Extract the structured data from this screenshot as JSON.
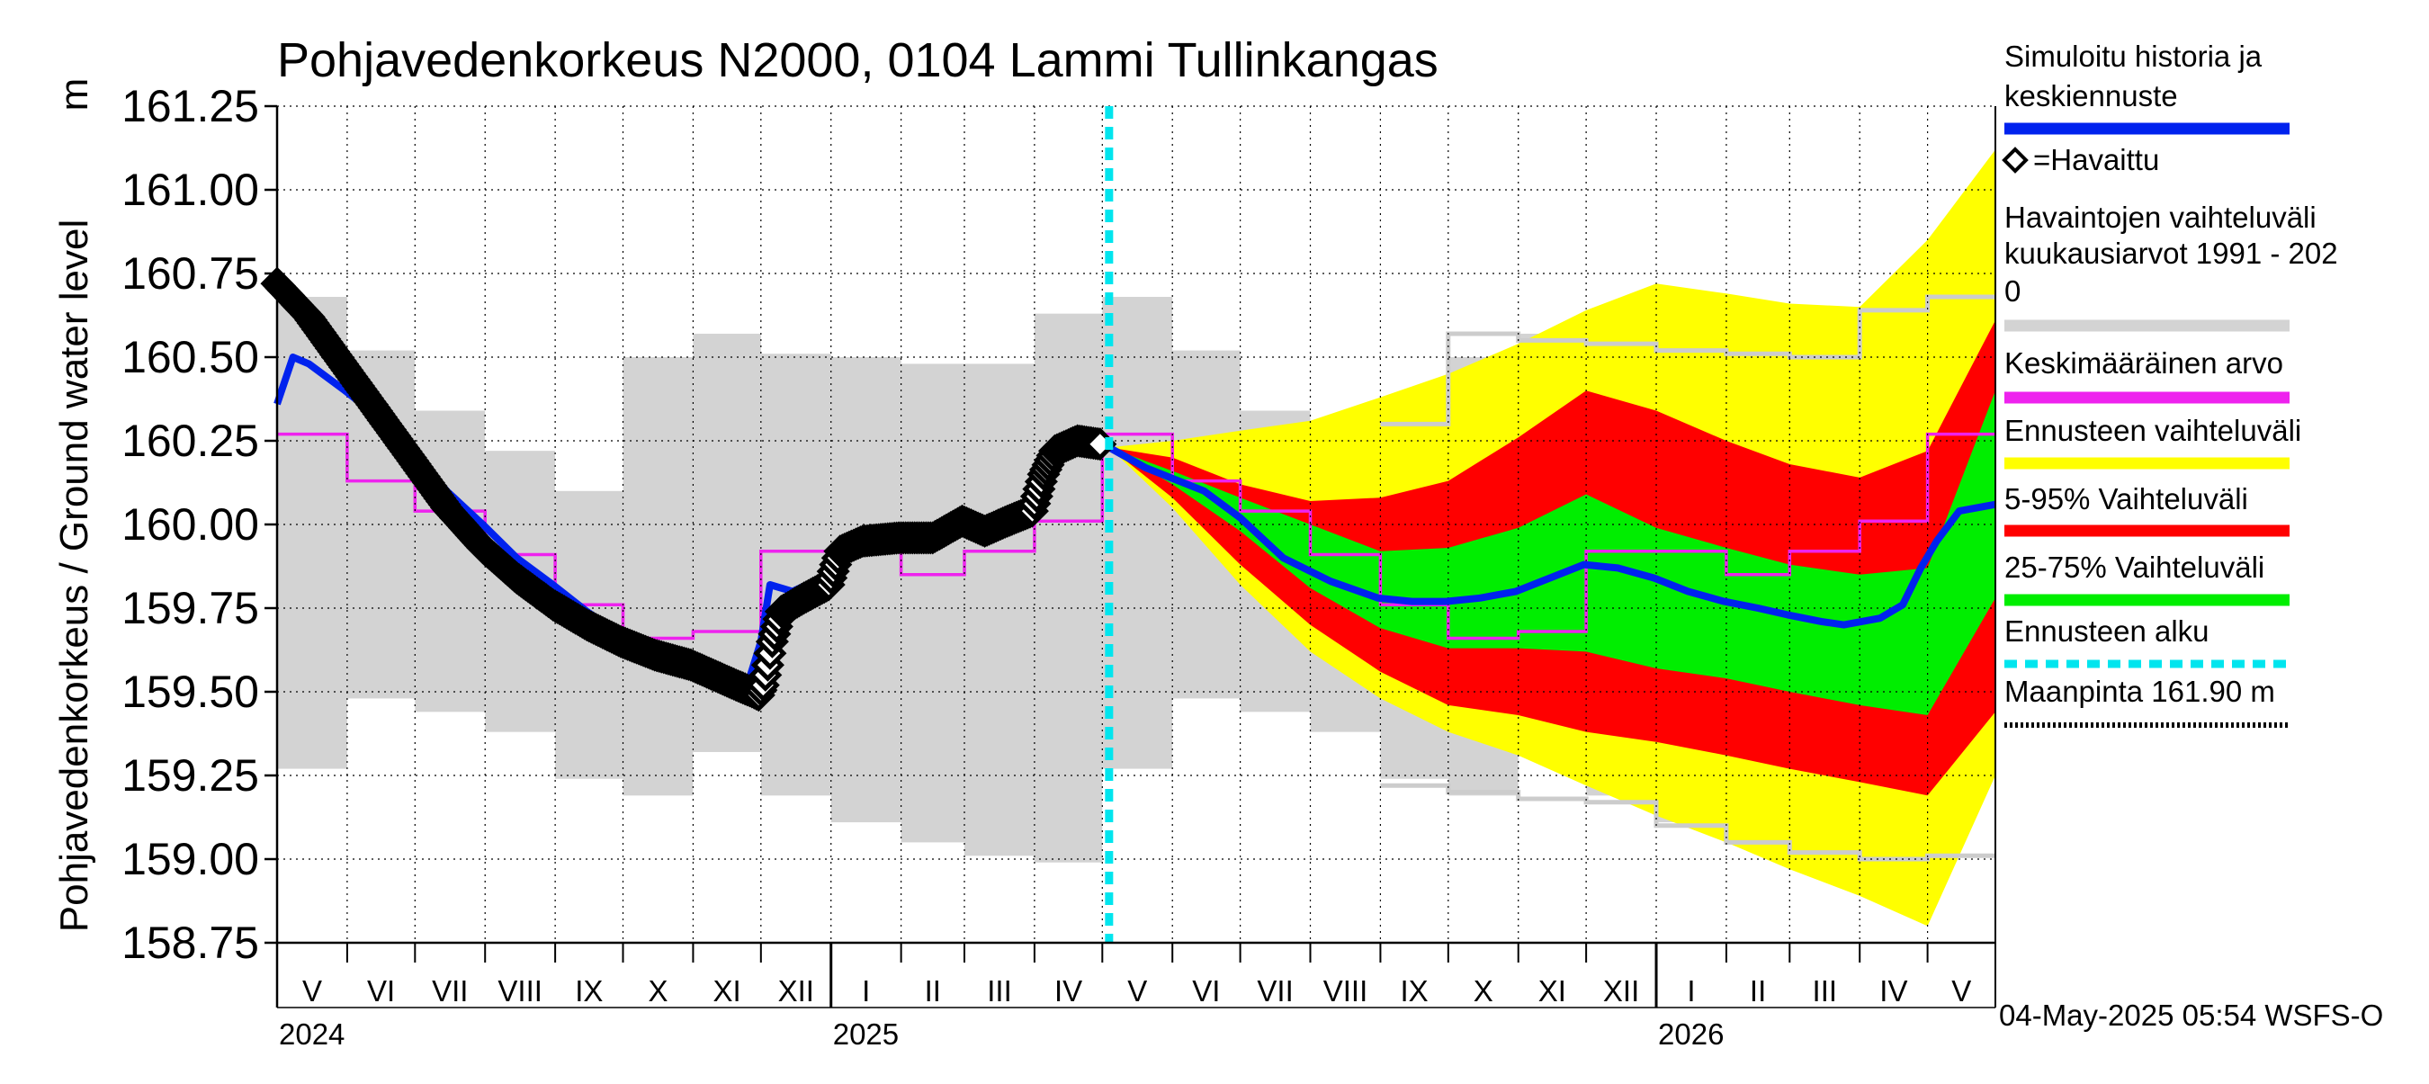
{
  "chart_data": {
    "type": "line",
    "title": "Pohjavedenkorkeus N2000, 0104 Lammi Tullinkangas",
    "ylabel": "Pohjavedenkorkeus / Ground water level",
    "yunit": "m",
    "ylim": [
      158.75,
      161.25
    ],
    "yticks": [
      "161.25",
      "161.00",
      "160.75",
      "160.50",
      "160.25",
      "160.00",
      "159.75",
      "159.50",
      "159.25",
      "159.00",
      "158.75"
    ],
    "xlim": [
      "2024-05-01",
      "2026-05-31"
    ],
    "grid": true,
    "months": [
      {
        "label": "V",
        "start": "2024-05-01"
      },
      {
        "label": "VI",
        "start": "2024-06-01"
      },
      {
        "label": "VII",
        "start": "2024-07-01"
      },
      {
        "label": "VIII",
        "start": "2024-08-01"
      },
      {
        "label": "IX",
        "start": "2024-09-01"
      },
      {
        "label": "X",
        "start": "2024-10-01"
      },
      {
        "label": "XI",
        "start": "2024-11-01"
      },
      {
        "label": "XII",
        "start": "2024-12-01"
      },
      {
        "label": "I",
        "start": "2025-01-01"
      },
      {
        "label": "II",
        "start": "2025-02-01"
      },
      {
        "label": "III",
        "start": "2025-03-01"
      },
      {
        "label": "IV",
        "start": "2025-04-01"
      },
      {
        "label": "V",
        "start": "2025-05-01"
      },
      {
        "label": "VI",
        "start": "2025-06-01"
      },
      {
        "label": "VII",
        "start": "2025-07-01"
      },
      {
        "label": "VIII",
        "start": "2025-08-01"
      },
      {
        "label": "IX",
        "start": "2025-09-01"
      },
      {
        "label": "X",
        "start": "2025-10-01"
      },
      {
        "label": "XI",
        "start": "2025-11-01"
      },
      {
        "label": "XII",
        "start": "2025-12-01"
      },
      {
        "label": "I",
        "start": "2026-01-01"
      },
      {
        "label": "II",
        "start": "2026-02-01"
      },
      {
        "label": "III",
        "start": "2026-03-01"
      },
      {
        "label": "IV",
        "start": "2026-04-01"
      },
      {
        "label": "V",
        "start": "2026-05-01"
      }
    ],
    "month_end": "2026-06-01",
    "years": [
      {
        "label": "2024",
        "date": "2024-05-01"
      },
      {
        "label": "2025",
        "date": "2025-01-01"
      },
      {
        "label": "2026",
        "date": "2026-01-01"
      }
    ],
    "forecast_start": "2025-05-04",
    "historical_range_monthly": [
      {
        "month": "2024-05",
        "min": 159.27,
        "max": 160.68
      },
      {
        "month": "2024-06",
        "min": 159.48,
        "max": 160.52
      },
      {
        "month": "2024-07",
        "min": 159.44,
        "max": 160.34
      },
      {
        "month": "2024-08",
        "min": 159.38,
        "max": 160.22
      },
      {
        "month": "2024-09",
        "min": 159.24,
        "max": 160.1
      },
      {
        "month": "2024-10",
        "min": 159.19,
        "max": 160.5
      },
      {
        "month": "2024-11",
        "min": 159.32,
        "max": 160.57
      },
      {
        "month": "2024-12",
        "min": 159.19,
        "max": 160.51
      },
      {
        "month": "2025-01",
        "min": 159.11,
        "max": 160.5
      },
      {
        "month": "2025-02",
        "min": 159.05,
        "max": 160.48
      },
      {
        "month": "2025-03",
        "min": 159.01,
        "max": 160.48
      },
      {
        "month": "2025-04",
        "min": 158.99,
        "max": 160.63
      },
      {
        "month": "2025-05",
        "min": 159.27,
        "max": 160.68
      },
      {
        "month": "2025-06",
        "min": 159.48,
        "max": 160.52
      },
      {
        "month": "2025-07",
        "min": 159.44,
        "max": 160.34
      },
      {
        "month": "2025-08",
        "min": 159.38,
        "max": 160.22
      },
      {
        "month": "2025-09",
        "min": 159.24,
        "max": 160.3
      },
      {
        "month": "2025-10",
        "min": 159.19,
        "max": 160.5
      },
      {
        "month": "2025-11",
        "min": 159.32,
        "max": 160.57
      },
      {
        "month": "2025-12",
        "min": 159.19,
        "max": 160.51
      },
      {
        "month": "2026-01",
        "min": 159.11,
        "max": 160.5
      },
      {
        "month": "2026-02",
        "min": 159.05,
        "max": 160.48
      },
      {
        "month": "2026-03",
        "min": 159.01,
        "max": 160.48
      },
      {
        "month": "2026-04",
        "min": 158.99,
        "max": 160.63
      },
      {
        "month": "2026-05",
        "min": 159.27,
        "max": 160.68
      }
    ],
    "monthly_mean": [
      {
        "month": "2024-05",
        "value": 160.27
      },
      {
        "month": "2024-06",
        "value": 160.13
      },
      {
        "month": "2024-07",
        "value": 160.04
      },
      {
        "month": "2024-08",
        "value": 159.91
      },
      {
        "month": "2024-09",
        "value": 159.76
      },
      {
        "month": "2024-10",
        "value": 159.66
      },
      {
        "month": "2024-11",
        "value": 159.68
      },
      {
        "month": "2024-12",
        "value": 159.92
      },
      {
        "month": "2025-01",
        "value": 159.92
      },
      {
        "month": "2025-02",
        "value": 159.85
      },
      {
        "month": "2025-03",
        "value": 159.92
      },
      {
        "month": "2025-04",
        "value": 160.01
      },
      {
        "month": "2025-05",
        "value": 160.27
      },
      {
        "month": "2025-06",
        "value": 160.13
      },
      {
        "month": "2025-07",
        "value": 160.04
      },
      {
        "month": "2025-08",
        "value": 159.91
      },
      {
        "month": "2025-09",
        "value": 159.76
      },
      {
        "month": "2025-10",
        "value": 159.66
      },
      {
        "month": "2025-11",
        "value": 159.68
      },
      {
        "month": "2025-12",
        "value": 159.92
      },
      {
        "month": "2026-01",
        "value": 159.92
      },
      {
        "month": "2026-02",
        "value": 159.85
      },
      {
        "month": "2026-03",
        "value": 159.92
      },
      {
        "month": "2026-04",
        "value": 160.01
      },
      {
        "month": "2026-05",
        "value": 160.27
      }
    ],
    "historical_monthly_extremes": [
      {
        "month": "2025-09",
        "min": 159.22,
        "max": 160.3
      },
      {
        "month": "2025-10",
        "min": 159.2,
        "max": 160.57
      },
      {
        "month": "2025-11",
        "min": 159.18,
        "max": 160.55
      },
      {
        "month": "2025-12",
        "min": 159.17,
        "max": 160.54
      },
      {
        "month": "2026-01",
        "min": 159.1,
        "max": 160.52
      },
      {
        "month": "2026-02",
        "min": 159.05,
        "max": 160.51
      },
      {
        "month": "2026-03",
        "min": 159.02,
        "max": 160.5
      },
      {
        "month": "2026-04",
        "min": 159.0,
        "max": 160.64
      },
      {
        "month": "2026-05",
        "min": 159.01,
        "max": 160.68
      }
    ],
    "series": [
      {
        "name": "Simuloitu historia ja keskiennuste",
        "color": "#0022ee",
        "points": [
          [
            "2024-05-01",
            160.36
          ],
          [
            "2024-05-08",
            160.5
          ],
          [
            "2024-05-15",
            160.48
          ],
          [
            "2024-05-31",
            160.4
          ],
          [
            "2024-06-15",
            160.32
          ],
          [
            "2024-06-30",
            160.22
          ],
          [
            "2024-07-15",
            160.1
          ],
          [
            "2024-07-31",
            160.0
          ],
          [
            "2024-08-15",
            159.9
          ],
          [
            "2024-08-31",
            159.82
          ],
          [
            "2024-09-15",
            159.74
          ],
          [
            "2024-09-30",
            159.67
          ],
          [
            "2024-10-15",
            159.62
          ],
          [
            "2024-10-31",
            159.58
          ],
          [
            "2024-11-10",
            159.54
          ],
          [
            "2024-11-20",
            159.5
          ],
          [
            "2024-11-25",
            159.52
          ],
          [
            "2024-12-01",
            159.65
          ],
          [
            "2024-12-05",
            159.82
          ],
          [
            "2024-12-15",
            159.8
          ],
          [
            "2024-12-31",
            159.85
          ],
          [
            "2025-01-10",
            159.92
          ],
          [
            "2025-01-31",
            159.94
          ],
          [
            "2025-02-15",
            159.97
          ],
          [
            "2025-02-28",
            160.02
          ],
          [
            "2025-03-15",
            159.97
          ],
          [
            "2025-03-31",
            160.03
          ],
          [
            "2025-04-10",
            160.2
          ],
          [
            "2025-04-30",
            160.25
          ],
          [
            "2025-05-04",
            160.23
          ],
          [
            "2025-05-20",
            160.17
          ],
          [
            "2025-06-15",
            160.1
          ],
          [
            "2025-07-01",
            160.02
          ],
          [
            "2025-07-20",
            159.9
          ],
          [
            "2025-08-10",
            159.83
          ],
          [
            "2025-08-31",
            159.78
          ],
          [
            "2025-09-15",
            159.77
          ],
          [
            "2025-09-30",
            159.77
          ],
          [
            "2025-10-15",
            159.78
          ],
          [
            "2025-10-31",
            159.8
          ],
          [
            "2025-11-15",
            159.84
          ],
          [
            "2025-11-30",
            159.88
          ],
          [
            "2025-12-15",
            159.87
          ],
          [
            "2025-12-31",
            159.84
          ],
          [
            "2026-01-15",
            159.8
          ],
          [
            "2026-01-31",
            159.77
          ],
          [
            "2026-02-15",
            159.75
          ],
          [
            "2026-02-28",
            159.73
          ],
          [
            "2026-03-15",
            159.71
          ],
          [
            "2026-03-25",
            159.7
          ],
          [
            "2026-04-10",
            159.72
          ],
          [
            "2026-04-20",
            159.76
          ],
          [
            "2026-04-28",
            159.87
          ],
          [
            "2026-05-05",
            159.95
          ],
          [
            "2026-05-15",
            160.04
          ],
          [
            "2026-05-31",
            160.06
          ]
        ]
      },
      {
        "name": "=Havaittu",
        "color": "#000000",
        "points": [
          [
            "2024-05-01",
            160.72
          ],
          [
            "2024-05-15",
            160.62
          ],
          [
            "2024-05-31",
            160.47
          ],
          [
            "2024-06-15",
            160.33
          ],
          [
            "2024-06-30",
            160.19
          ],
          [
            "2024-07-15",
            160.05
          ],
          [
            "2024-07-31",
            159.93
          ],
          [
            "2024-08-15",
            159.84
          ],
          [
            "2024-08-31",
            159.76
          ],
          [
            "2024-09-15",
            159.7
          ],
          [
            "2024-09-30",
            159.65
          ],
          [
            "2024-10-15",
            159.61
          ],
          [
            "2024-10-31",
            159.58
          ],
          [
            "2024-11-10",
            159.55
          ],
          [
            "2024-11-20",
            159.52
          ],
          [
            "2024-11-27",
            159.5
          ],
          [
            "2024-11-30",
            159.49
          ],
          [
            "2024-12-02",
            159.52
          ],
          [
            "2024-12-04",
            159.58
          ],
          [
            "2024-12-06",
            159.65
          ],
          [
            "2024-12-10",
            159.74
          ],
          [
            "2024-12-20",
            159.78
          ],
          [
            "2024-12-31",
            159.82
          ],
          [
            "2025-01-05",
            159.92
          ],
          [
            "2025-01-15",
            159.95
          ],
          [
            "2025-01-31",
            159.96
          ],
          [
            "2025-02-15",
            159.96
          ],
          [
            "2025-02-28",
            160.01
          ],
          [
            "2025-03-10",
            159.98
          ],
          [
            "2025-03-20",
            160.01
          ],
          [
            "2025-03-31",
            160.04
          ],
          [
            "2025-04-05",
            160.15
          ],
          [
            "2025-04-10",
            160.22
          ],
          [
            "2025-04-20",
            160.25
          ],
          [
            "2025-04-30",
            160.24
          ]
        ]
      }
    ],
    "forecast_bands": {
      "x": [
        "2025-05-04",
        "2025-06-01",
        "2025-07-01",
        "2025-08-01",
        "2025-09-01",
        "2025-10-01",
        "2025-11-01",
        "2025-12-01",
        "2026-01-01",
        "2026-02-01",
        "2026-03-01",
        "2026-04-01",
        "2026-05-01",
        "2026-05-31"
      ],
      "envelope": {
        "name": "Ennusteen vaihteluväli",
        "color": "#ffff00",
        "low": [
          160.23,
          160.05,
          159.82,
          159.62,
          159.48,
          159.38,
          159.31,
          159.22,
          159.13,
          159.05,
          158.97,
          158.89,
          158.8,
          159.25
        ],
        "high": [
          160.23,
          160.25,
          160.28,
          160.31,
          160.38,
          160.45,
          160.54,
          160.64,
          160.72,
          160.69,
          160.66,
          160.65,
          160.85,
          161.12
        ]
      },
      "p5_95": {
        "name": "5-95% Vaihteluväli",
        "color": "#ff0000",
        "low": [
          160.23,
          160.08,
          159.88,
          159.7,
          159.56,
          159.46,
          159.43,
          159.38,
          159.35,
          159.31,
          159.27,
          159.23,
          159.19,
          159.44
        ],
        "high": [
          160.23,
          160.2,
          160.12,
          160.07,
          160.08,
          160.13,
          160.26,
          160.4,
          160.34,
          160.25,
          160.18,
          160.14,
          160.22,
          160.61
        ]
      },
      "p25_75": {
        "name": "25-75% Vaihteluväli",
        "color": "#00ee00",
        "low": [
          160.23,
          160.12,
          159.98,
          159.81,
          159.69,
          159.63,
          159.63,
          159.62,
          159.57,
          159.54,
          159.5,
          159.46,
          159.43,
          159.78
        ],
        "high": [
          160.23,
          160.16,
          160.08,
          160.0,
          159.92,
          159.93,
          159.99,
          160.09,
          159.99,
          159.93,
          159.88,
          159.85,
          159.87,
          160.4
        ]
      }
    },
    "legend": {
      "placement": "right",
      "entries": [
        {
          "key": "sim",
          "label_lines": [
            "Simuloitu historia ja",
            "keskiennuste"
          ],
          "color": "#0022ee",
          "style": "line"
        },
        {
          "key": "obs",
          "label_lines": [
            "=Havaittu"
          ],
          "color": "#000000",
          "style": "diamond"
        },
        {
          "key": "hist",
          "label_lines": [
            "Havaintojen vaihteluväli",
            " kuukausiarvot 1991 - 202",
            "0"
          ],
          "color": "#d3d3d3",
          "style": "line"
        },
        {
          "key": "mean",
          "label_lines": [
            "Keskimääräinen arvo"
          ],
          "color": "#ee22ee",
          "style": "line"
        },
        {
          "key": "env",
          "label_lines": [
            "Ennusteen vaihteluväli"
          ],
          "color": "#ffff00",
          "style": "line"
        },
        {
          "key": "p595",
          "label_lines": [
            "5-95% Vaihteluväli"
          ],
          "color": "#ff0000",
          "style": "line"
        },
        {
          "key": "p2575",
          "label_lines": [
            "25-75% Vaihteluväli"
          ],
          "color": "#00ee00",
          "style": "line"
        },
        {
          "key": "fstart",
          "label_lines": [
            "Ennusteen alku"
          ],
          "color": "#00e5ee",
          "style": "dashed"
        },
        {
          "key": "ground",
          "label_lines": [
            "Maanpinta 161.90 m"
          ],
          "color": "#000000",
          "style": "dotted"
        }
      ]
    },
    "timestamp": "04-May-2025 05:54 WSFS-O",
    "colors": {
      "hist_band": "#d3d3d3",
      "hist_extreme": "#cccccc",
      "mean": "#ee22ee",
      "forecast_start": "#00e5ee"
    }
  }
}
